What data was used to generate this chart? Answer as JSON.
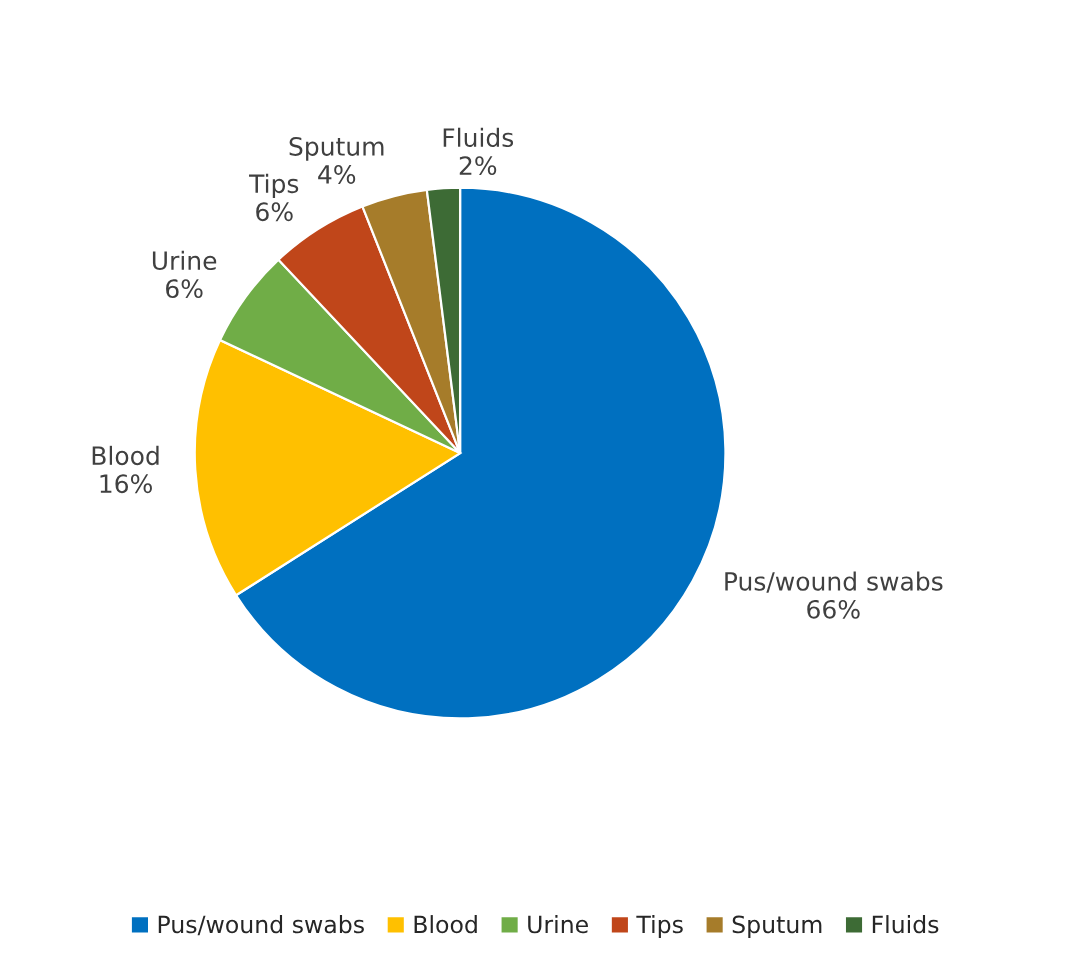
{
  "chart_data": {
    "type": "pie",
    "categories": [
      "Pus/wound swabs",
      "Blood",
      "Urine",
      "Tips",
      "Sputum",
      "Fluids"
    ],
    "values": [
      66,
      16,
      6,
      6,
      4,
      2
    ],
    "value_labels": [
      "66%",
      "16%",
      "6%",
      "6%",
      "4%",
      "2%"
    ],
    "colors": [
      "#0070c0",
      "#ffc000",
      "#70ad47",
      "#c0461a",
      "#a67c2a",
      "#3d6b35"
    ],
    "legend": "bottom"
  }
}
